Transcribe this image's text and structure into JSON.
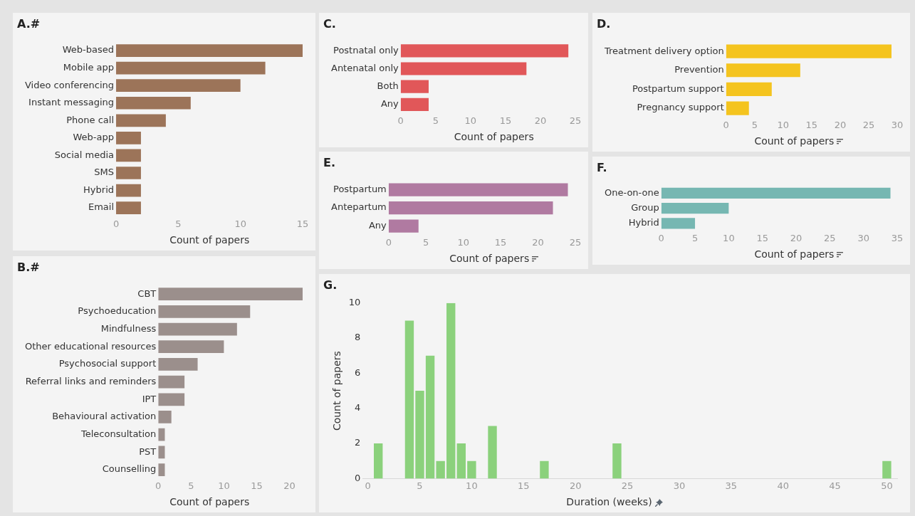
{
  "chart_data": [
    {
      "type": "bar",
      "title": "A.#",
      "orientation": "horizontal",
      "categories": [
        "Web-based",
        "Mobile app",
        "Video conferencing",
        "Instant messaging",
        "Phone call",
        "Web-app",
        "Social media",
        "SMS",
        "Hybrid",
        "Email"
      ],
      "values": [
        15,
        12,
        10,
        6,
        4,
        2,
        2,
        2,
        2,
        2
      ],
      "color": "#9c7459",
      "xlabel": "Count of papers",
      "xlim": [
        0,
        15
      ],
      "xticks": [
        0,
        5,
        10,
        15
      ],
      "grid": false,
      "legend": false
    },
    {
      "type": "bar",
      "title": "B.#",
      "orientation": "horizontal",
      "categories": [
        "CBT",
        "Psychoeducation",
        "Mindfulness",
        "Other educational resources",
        "Psychosocial support",
        "Referral links and reminders",
        "IPT",
        "Behavioural activation",
        "Teleconsultation",
        "PST",
        "Counselling"
      ],
      "values": [
        22,
        14,
        12,
        10,
        6,
        4,
        4,
        2,
        1,
        1,
        1
      ],
      "color": "#9b8f8c",
      "xlabel": "Count of papers",
      "xlim": [
        0,
        22
      ],
      "xticks": [
        0,
        5,
        10,
        15,
        20
      ],
      "grid": false,
      "legend": false
    },
    {
      "type": "bar",
      "title": "C.",
      "orientation": "horizontal",
      "categories": [
        "Postnatal only",
        "Antenatal only",
        "Both",
        "Any"
      ],
      "values": [
        24,
        18,
        4,
        4
      ],
      "color": "#e15759",
      "xlabel": "Count of papers",
      "xlim": [
        0,
        25
      ],
      "xticks": [
        0,
        5,
        10,
        15,
        20,
        25
      ],
      "grid": false,
      "legend": false
    },
    {
      "type": "bar",
      "title": "D.",
      "orientation": "horizontal",
      "categories": [
        "Treatment delivery option",
        "Prevention",
        "Postpartum support",
        "Pregnancy support"
      ],
      "values": [
        29,
        13,
        8,
        4
      ],
      "color": "#f4c41f",
      "xlabel": "Count of papers",
      "xlim": [
        0,
        30
      ],
      "xticks": [
        0,
        5,
        10,
        15,
        20,
        25,
        30
      ],
      "grid": false,
      "legend": false
    },
    {
      "type": "bar",
      "title": "E.",
      "orientation": "horizontal",
      "categories": [
        "Postpartum",
        "Antepartum",
        "Any"
      ],
      "values": [
        24,
        22,
        4
      ],
      "color": "#b07aa1",
      "xlabel": "Count of papers",
      "xlim": [
        0,
        25
      ],
      "xticks": [
        0,
        5,
        10,
        15,
        20,
        25
      ],
      "grid": false,
      "legend": false
    },
    {
      "type": "bar",
      "title": "F.",
      "orientation": "horizontal",
      "categories": [
        "One-on-one",
        "Group",
        "Hybrid"
      ],
      "values": [
        34,
        10,
        5
      ],
      "color": "#76b7b2",
      "xlabel": "Count of papers",
      "xlim": [
        0,
        35
      ],
      "xticks": [
        0,
        5,
        10,
        15,
        20,
        25,
        30,
        35
      ],
      "grid": false,
      "legend": false
    },
    {
      "type": "bar",
      "title": "G.",
      "x": [
        1,
        4,
        5,
        6,
        7,
        8,
        9,
        10,
        12,
        17,
        24,
        50
      ],
      "values": [
        2,
        9,
        5,
        7,
        1,
        10,
        2,
        1,
        3,
        1,
        2,
        1
      ],
      "color": "#8bd17c",
      "xlabel": "Duration (weeks)",
      "ylabel": "Count of papers",
      "xlim": [
        -0.5,
        51
      ],
      "xticks": [
        0,
        5,
        10,
        15,
        20,
        25,
        30,
        35,
        40,
        45,
        50
      ],
      "ylim": [
        0,
        10
      ],
      "yticks": [
        0,
        2,
        4,
        6,
        8,
        10
      ],
      "grid": false,
      "legend": false
    }
  ]
}
